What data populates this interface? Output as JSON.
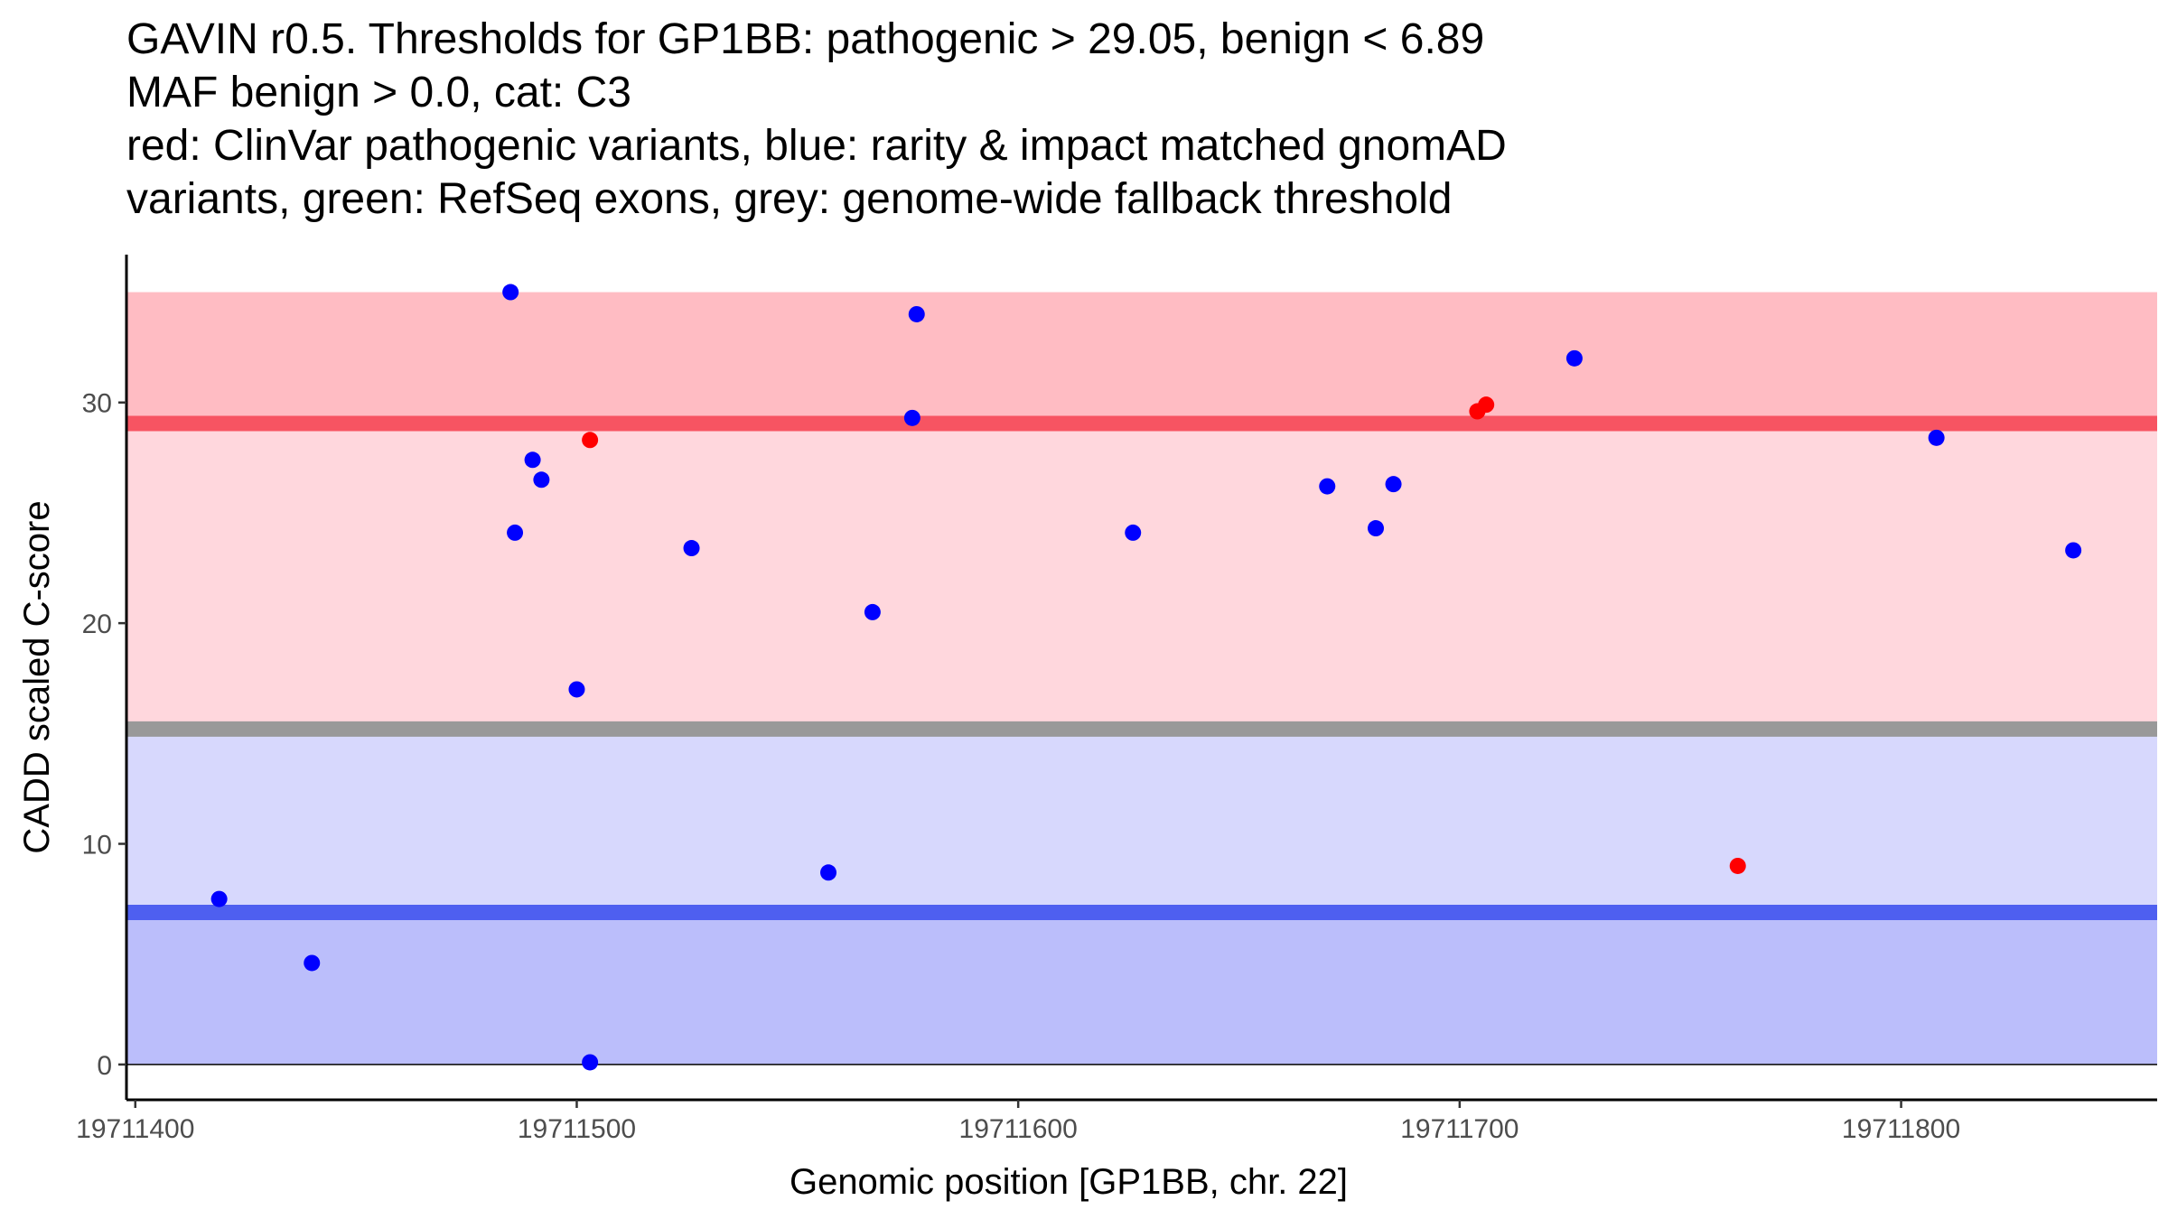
{
  "chart_data": {
    "type": "scatter",
    "title_lines": [
      "GAVIN r0.5. Thresholds for GP1BB: pathogenic > 29.05, benign < 6.89",
      "MAF benign > 0.0, cat: C3",
      "red: ClinVar pathogenic variants, blue: rarity & impact matched gnomAD",
      "variants, green: RefSeq exons, grey: genome-wide fallback threshold"
    ],
    "xlabel": "Genomic position [GP1BB, chr. 22]",
    "ylabel": "CADD scaled C-score",
    "xlim": [
      19711398,
      19711858
    ],
    "ylim": [
      -1.6,
      36.7
    ],
    "x_ticks": [
      19711400,
      19711500,
      19711600,
      19711700,
      19711800
    ],
    "y_ticks": [
      0,
      10,
      20,
      30
    ],
    "bands": [
      {
        "name": "pathogenic-upper",
        "y0": 29.05,
        "y1": 35.0,
        "color": "#ffbcc3"
      },
      {
        "name": "pathogenic-lower",
        "y0": 15.2,
        "y1": 29.05,
        "color": "#ffd7dd"
      },
      {
        "name": "benign-upper",
        "y0": 6.89,
        "y1": 15.2,
        "color": "#d7d8fd"
      },
      {
        "name": "benign-lower",
        "y0": 0.0,
        "y1": 6.89,
        "color": "#bbbefb"
      }
    ],
    "thresholds": [
      {
        "name": "pathogenic-threshold",
        "y": 29.05,
        "color": "#f75462"
      },
      {
        "name": "fallback-threshold",
        "y": 15.2,
        "color": "#999999"
      },
      {
        "name": "benign-threshold",
        "y": 6.89,
        "color": "#4e5ff0"
      }
    ],
    "series": [
      {
        "name": "gnomAD matched variants",
        "color": "#0000ff",
        "points": [
          [
            19711419,
            7.5
          ],
          [
            19711440,
            4.6
          ],
          [
            19711485,
            35.0
          ],
          [
            19711486,
            24.1
          ],
          [
            19711490,
            27.4
          ],
          [
            19711492,
            26.5
          ],
          [
            19711500,
            17.0
          ],
          [
            19711503,
            0.1
          ],
          [
            19711526,
            23.4
          ],
          [
            19711557,
            8.7
          ],
          [
            19711567,
            20.5
          ],
          [
            19711576,
            29.3
          ],
          [
            19711577,
            34.0
          ],
          [
            19711626,
            24.1
          ],
          [
            19711670,
            26.2
          ],
          [
            19711681,
            24.3
          ],
          [
            19711685,
            26.3
          ],
          [
            19711726,
            32.0
          ],
          [
            19711808,
            28.4
          ],
          [
            19711839,
            23.3
          ]
        ]
      },
      {
        "name": "ClinVar pathogenic variants",
        "color": "#ff0000",
        "points": [
          [
            19711503,
            28.3
          ],
          [
            19711704,
            29.6
          ],
          [
            19711706,
            29.9
          ],
          [
            19711763,
            9.0
          ]
        ]
      }
    ]
  }
}
